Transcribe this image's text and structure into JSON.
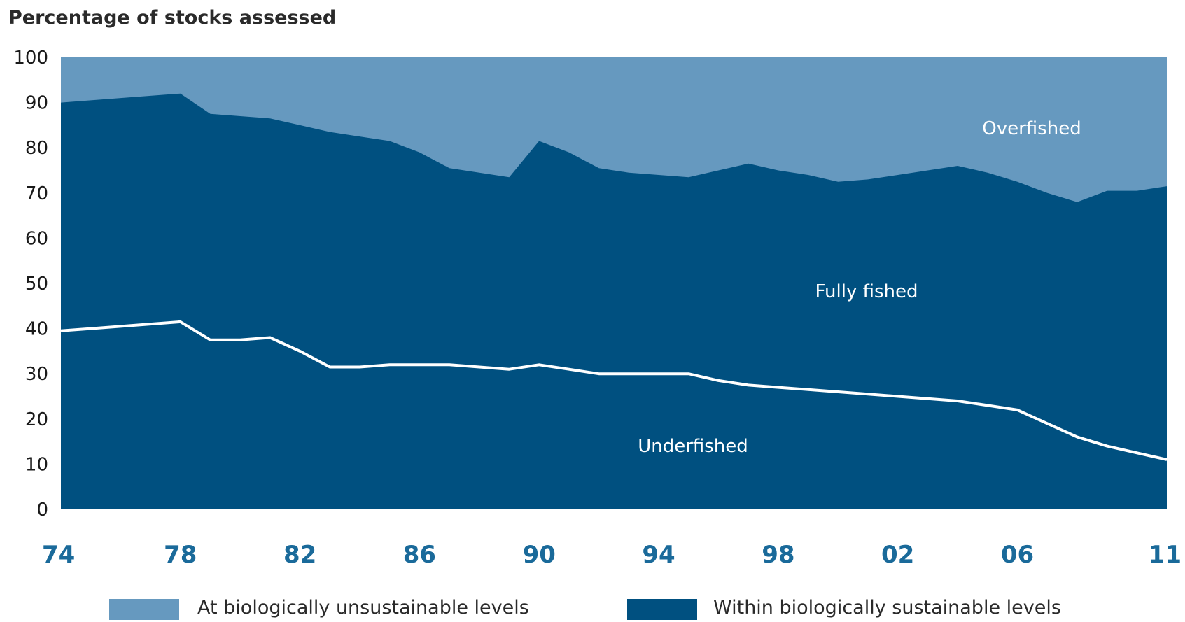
{
  "chart_data": {
    "type": "area",
    "title": "Percentage of stocks assessed",
    "ylim": [
      0,
      100
    ],
    "yticks": [
      "0",
      "10",
      "20",
      "30",
      "40",
      "50",
      "60",
      "70",
      "80",
      "90",
      "100"
    ],
    "xlim": [
      1974,
      2011
    ],
    "xticks": [
      {
        "value": 1974,
        "label": "74"
      },
      {
        "value": 1978,
        "label": "78"
      },
      {
        "value": 1982,
        "label": "82"
      },
      {
        "value": 1986,
        "label": "86"
      },
      {
        "value": 1990,
        "label": "90"
      },
      {
        "value": 1994,
        "label": "94"
      },
      {
        "value": 1998,
        "label": "98"
      },
      {
        "value": 2002,
        "label": "02"
      },
      {
        "value": 2006,
        "label": "06"
      },
      {
        "value": 2011,
        "label": "11"
      }
    ],
    "regions": {
      "overfished": "Overfished",
      "fully_fished": "Fully fished",
      "underfished": "Underfished"
    },
    "series": [
      {
        "name": "Fully fished",
        "x": [
          1974,
          1975,
          1976,
          1977,
          1978,
          1979,
          1980,
          1981,
          1982,
          1983,
          1984,
          1985,
          1986,
          1987,
          1988,
          1989,
          1990,
          1991,
          1992,
          1993,
          1994,
          1995,
          1996,
          1997,
          1998,
          1999,
          2000,
          2001,
          2002,
          2003,
          2004,
          2005,
          2006,
          2007,
          2008,
          2009,
          2010,
          2011
        ],
        "y": [
          90,
          90.5,
          91,
          91.5,
          92,
          87.5,
          87,
          86.5,
          85,
          83.5,
          82.5,
          81.5,
          79,
          75.5,
          74.5,
          73.5,
          81.5,
          79,
          75.5,
          74.5,
          74,
          73.5,
          75,
          76.5,
          75,
          74,
          72.5,
          73,
          74,
          75,
          76,
          74.5,
          72.5,
          70,
          68,
          70.5,
          70.5,
          71.5
        ]
      },
      {
        "name": "Underfished",
        "x": [
          1974,
          1975,
          1976,
          1977,
          1978,
          1979,
          1980,
          1981,
          1982,
          1983,
          1984,
          1985,
          1986,
          1987,
          1988,
          1989,
          1990,
          1991,
          1992,
          1993,
          1994,
          1995,
          1996,
          1997,
          1998,
          1999,
          2000,
          2001,
          2002,
          2003,
          2004,
          2005,
          2006,
          2007,
          2008,
          2009,
          2010,
          2011
        ],
        "y": [
          39.5,
          40,
          40.5,
          41,
          41.5,
          37.5,
          37.5,
          38,
          35,
          31.5,
          31.5,
          32,
          32,
          32,
          31.5,
          31,
          32,
          31,
          30,
          30,
          30,
          30,
          28.5,
          27.5,
          27,
          26.5,
          26,
          25.5,
          25,
          24.5,
          24,
          23,
          22,
          19,
          16,
          14,
          12.5,
          11
        ]
      }
    ],
    "legend": [
      {
        "label": "At biologically unsustainable levels",
        "color": "#6699bf"
      },
      {
        "label": "Within biologically sustainable levels",
        "color": "#005080"
      }
    ],
    "colors": {
      "overfished_area": "#6699bf",
      "sustainable_area": "#005080",
      "underfished_line": "#ffffff",
      "x_tick_text": "#1a6a9a"
    }
  }
}
